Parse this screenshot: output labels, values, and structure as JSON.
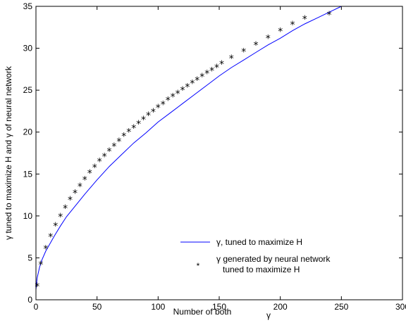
{
  "chart_data": {
    "type": "line",
    "xlabel": "Number of both",
    "xlabel_symbol": "γ",
    "ylabel": "γ tuned to maximize H and γ of neural network",
    "xlim": [
      0,
      300
    ],
    "ylim": [
      0,
      35
    ],
    "x_ticks": [
      0,
      50,
      100,
      150,
      200,
      250,
      300
    ],
    "y_ticks": [
      0,
      5,
      10,
      15,
      20,
      25,
      30,
      35
    ],
    "x_tick_labels": [
      "0",
      "50",
      "100",
      "150",
      "200",
      "250",
      "300"
    ],
    "y_tick_labels": [
      "0",
      "5",
      "10",
      "15",
      "20",
      "25",
      "30",
      "35"
    ],
    "grid": false,
    "legend_position": "bottom-right",
    "series": [
      {
        "name": "γ, tuned to maximize H",
        "kind": "line",
        "color": "#0000ff",
        "x": [
          0,
          1,
          3,
          5,
          8,
          10,
          15,
          20,
          25,
          30,
          40,
          50,
          60,
          70,
          80,
          90,
          100,
          110,
          120,
          130,
          140,
          150,
          160,
          170,
          180,
          190,
          200,
          210,
          220,
          230,
          240,
          250
        ],
        "y": [
          1.2,
          2.6,
          3.9,
          4.8,
          5.8,
          6.3,
          7.6,
          8.8,
          9.9,
          10.8,
          12.6,
          14.3,
          15.9,
          17.3,
          18.7,
          19.9,
          21.2,
          22.3,
          23.4,
          24.5,
          25.6,
          26.7,
          27.7,
          28.6,
          29.5,
          30.4,
          31.2,
          32.1,
          32.9,
          33.6,
          34.3,
          35.0
        ]
      },
      {
        "name": "γ generated by neural network tuned to maximize H",
        "name_line1": "γ generated by neural network",
        "name_line2": "tuned to maximize H",
        "kind": "scatter",
        "marker": "*",
        "color": "#000000",
        "x": [
          1,
          4,
          8,
          12,
          16,
          20,
          24,
          28,
          32,
          36,
          40,
          44,
          48,
          52,
          56,
          60,
          64,
          68,
          72,
          76,
          80,
          84,
          88,
          92,
          96,
          100,
          104,
          108,
          112,
          116,
          120,
          124,
          128,
          132,
          136,
          140,
          144,
          148,
          152,
          160,
          170,
          180,
          190,
          200,
          210,
          220,
          240
        ],
        "y": [
          1.6,
          4.2,
          6.1,
          7.5,
          8.8,
          9.9,
          10.9,
          11.9,
          12.7,
          13.5,
          14.3,
          15.1,
          15.8,
          16.5,
          17.1,
          17.7,
          18.3,
          18.9,
          19.5,
          20.0,
          20.5,
          21.0,
          21.5,
          22.0,
          22.4,
          22.9,
          23.3,
          23.8,
          24.2,
          24.6,
          25.0,
          25.4,
          25.8,
          26.2,
          26.6,
          27.0,
          27.3,
          27.7,
          28.1,
          28.8,
          29.6,
          30.4,
          31.2,
          32.0,
          32.8,
          33.5,
          34.0
        ]
      }
    ]
  }
}
